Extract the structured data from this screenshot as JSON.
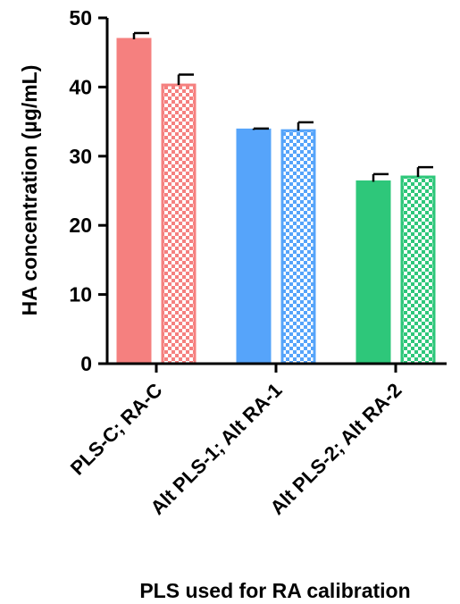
{
  "chart_data": {
    "type": "bar",
    "xlabel": "PLS used for RA calibration",
    "ylabel": "HA concentration (µg/mL)",
    "ylim": [
      0,
      50
    ],
    "yticks": [
      0,
      10,
      20,
      30,
      40,
      50
    ],
    "grid": false,
    "legend": "none",
    "categories": [
      "PLS-C; RA-C",
      "Alt PLS-1; Alt RA-1",
      "Alt PLS-2; Alt RA-2"
    ],
    "colors": [
      "#F5807F",
      "#56A4FA",
      "#2EC77A"
    ],
    "series": [
      {
        "fill": "solid",
        "values": [
          46.9,
          33.8,
          26.3
        ],
        "errors": [
          0.9,
          0.2,
          1.1
        ]
      },
      {
        "fill": "checkered",
        "values": [
          40.3,
          33.7,
          27.0
        ],
        "errors": [
          1.5,
          1.2,
          1.4
        ]
      }
    ]
  }
}
